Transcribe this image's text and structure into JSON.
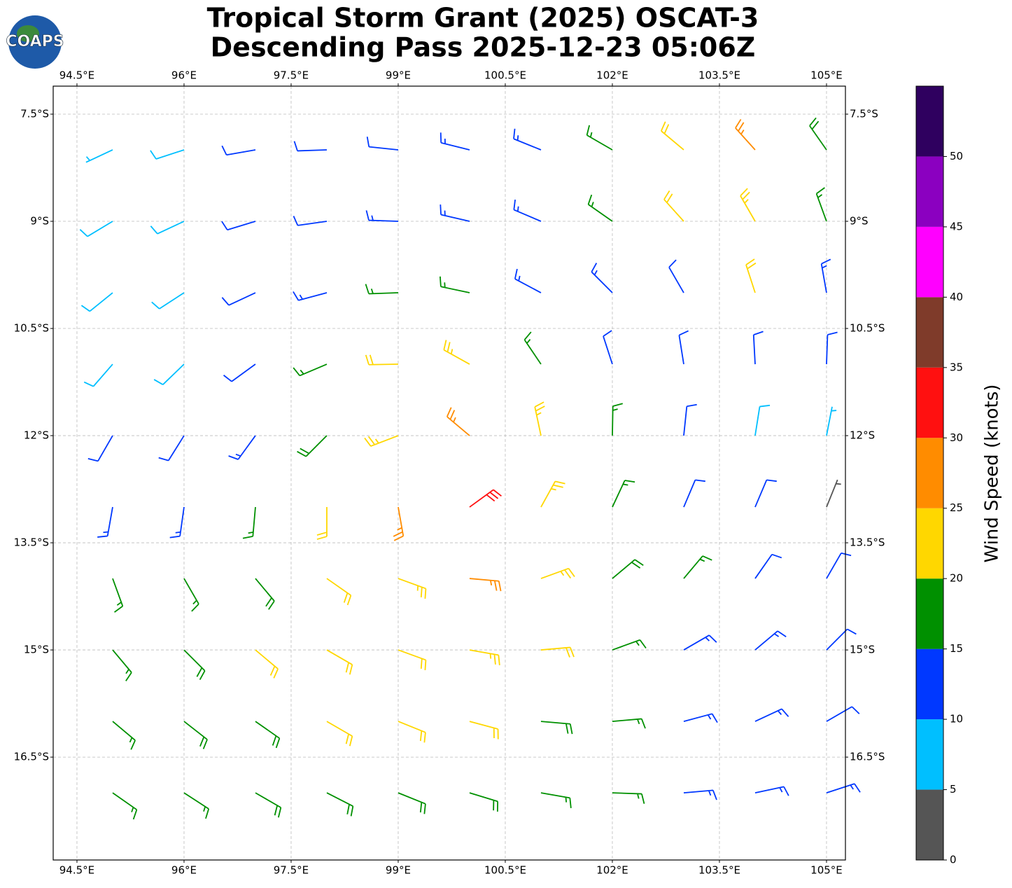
{
  "chart_data": {
    "type": "barbs",
    "title": "Tropical Storm Grant (2025) OSCAT-3",
    "subtitle": "Descending Pass 2025-12-23 05:06Z",
    "logo_text": "COAPS",
    "xlim": [
      94.167,
      105.265
    ],
    "ylim": [
      -17.94,
      -7.108
    ],
    "xticks": [
      {
        "value": 94.5,
        "label": "94.5°E"
      },
      {
        "value": 96,
        "label": "96°E"
      },
      {
        "value": 97.5,
        "label": "97.5°E"
      },
      {
        "value": 99,
        "label": "99°E"
      },
      {
        "value": 100.5,
        "label": "100.5°E"
      },
      {
        "value": 102,
        "label": "102°E"
      },
      {
        "value": 103.5,
        "label": "103.5°E"
      },
      {
        "value": 105,
        "label": "105°E"
      }
    ],
    "yticks": [
      {
        "value": -7.5,
        "label": "7.5°S"
      },
      {
        "value": -9,
        "label": "9°S"
      },
      {
        "value": -10.5,
        "label": "10.5°S"
      },
      {
        "value": -12,
        "label": "12°S"
      },
      {
        "value": -13.5,
        "label": "13.5°S"
      },
      {
        "value": -15,
        "label": "15°S"
      },
      {
        "value": -16.5,
        "label": "16.5°S"
      }
    ],
    "grid": true,
    "lon": [
      95,
      96,
      97,
      98,
      99,
      100,
      101,
      102,
      103,
      104,
      105
    ],
    "lat": [
      -8,
      -9,
      -10,
      -11,
      -12,
      -13,
      -14,
      -15,
      -16,
      -17
    ],
    "speed": [
      [
        7,
        8,
        11,
        12,
        12,
        13,
        13,
        16,
        22,
        26,
        18
      ],
      [
        8,
        9,
        11,
        12,
        13,
        13,
        13,
        15,
        20,
        24,
        17
      ],
      [
        8,
        9,
        11,
        13,
        15,
        16,
        14,
        13,
        11,
        20,
        14
      ],
      [
        9,
        8,
        12,
        17,
        22,
        24,
        17,
        12,
        11,
        11,
        10
      ],
      [
        11,
        12,
        14,
        19,
        23,
        27,
        23,
        15,
        12,
        9,
        6
      ],
      [
        13,
        14,
        17,
        21,
        26,
        32,
        24,
        16,
        12,
        11,
        4
      ],
      [
        16,
        17,
        18,
        21,
        24,
        27,
        23,
        18,
        15,
        11,
        10
      ],
      [
        17,
        18,
        20,
        22,
        22,
        23,
        21,
        17,
        14,
        13,
        12
      ],
      [
        17,
        18,
        19,
        21,
        22,
        21,
        19,
        16,
        14,
        13,
        12
      ],
      [
        17,
        17,
        18,
        19,
        19,
        18,
        17,
        15,
        14,
        13,
        13
      ]
    ],
    "direction": [
      [
        245,
        252,
        260,
        268,
        276,
        284,
        292,
        300,
        310,
        318,
        325
      ],
      [
        239,
        245,
        253,
        262,
        272,
        283,
        293,
        305,
        318,
        330,
        340
      ],
      [
        231,
        237,
        245,
        255,
        268,
        282,
        298,
        315,
        330,
        342,
        350
      ],
      [
        221,
        226,
        234,
        247,
        269,
        299,
        326,
        342,
        351,
        357,
        2
      ],
      [
        210,
        212,
        216,
        225,
        249,
        310,
        348,
        1,
        6,
        9,
        11
      ],
      [
        190,
        188,
        185,
        180,
        170,
        54,
        29,
        25,
        23,
        23,
        22
      ],
      [
        160,
        150,
        140,
        125,
        110,
        95,
        70,
        50,
        40,
        35,
        30
      ],
      [
        140,
        135,
        130,
        120,
        110,
        100,
        85,
        70,
        60,
        50,
        45
      ],
      [
        130,
        128,
        125,
        120,
        112,
        105,
        95,
        85,
        75,
        65,
        60
      ],
      [
        125,
        123,
        120,
        117,
        112,
        107,
        100,
        92,
        85,
        78,
        72
      ]
    ],
    "levels": [
      0,
      5,
      10,
      15,
      20,
      25,
      30,
      35,
      40,
      45,
      50,
      55
    ],
    "colors": [
      "#555555",
      "#00bfff",
      "#0038ff",
      "#009000",
      "#ffd700",
      "#ff8c00",
      "#ff1010",
      "#7f3b2a",
      "#ff00ff",
      "#8b00c0",
      "#2f005f"
    ],
    "cticks": [
      0,
      5,
      10,
      15,
      20,
      25,
      30,
      35,
      40,
      45,
      50
    ],
    "colorbar_label": "Wind Speed (knots)"
  }
}
